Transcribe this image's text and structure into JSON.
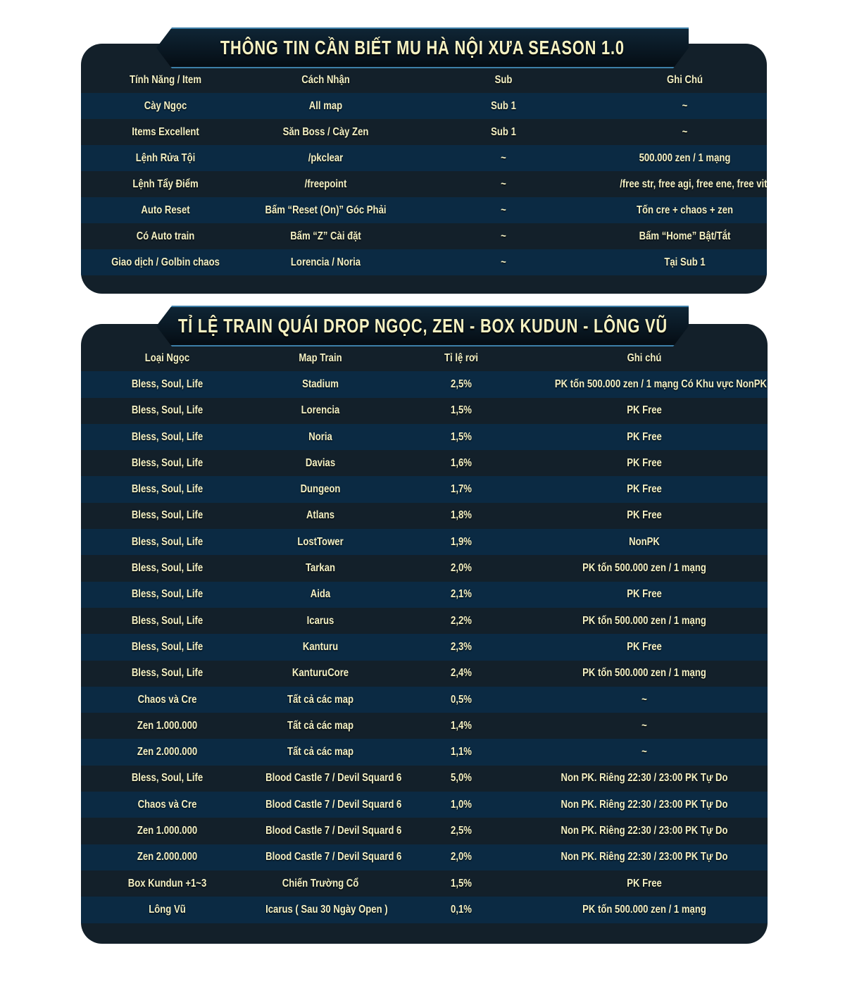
{
  "section1": {
    "title": "THÔNG TIN CẦN BIẾT MU HÀ NỘI XƯA SEASON 1.0",
    "headers": [
      "Tính Năng / Item",
      "Cách Nhận",
      "Sub",
      "Ghi Chú"
    ],
    "rows": [
      [
        "Cày Ngọc",
        "All map",
        "Sub 1",
        "~"
      ],
      [
        "Items Excellent",
        "Săn Boss / Cày Zen",
        "Sub 1",
        "~"
      ],
      [
        "Lệnh Rửa Tội",
        "/pkclear",
        "~",
        "500.000 zen / 1 mạng"
      ],
      [
        "Lệnh Tẩy Điểm",
        "/freepoint",
        "~",
        "/free str, free agi, free ene, free vit"
      ],
      [
        "Auto Reset",
        "Bấm “Reset (On)” Góc Phải",
        "~",
        "Tốn cre + chaos + zen"
      ],
      [
        "Có Auto train",
        "Bấm “Z” Cài đặt",
        "~",
        "Bấm “Home” Bật/Tắt"
      ],
      [
        "Giao dịch / Golbin chaos",
        "Lorencia / Noria",
        "~",
        "Tại Sub 1"
      ]
    ]
  },
  "section2": {
    "title": "TỈ LỆ TRAIN QUÁI DROP NGỌC, ZEN - BOX KUDUN - LÔNG VŨ",
    "headers": [
      "Loại Ngọc",
      "Map Train",
      "Tỉ lệ rơi",
      "Ghi chú"
    ],
    "rows": [
      [
        "Bless, Soul, Life",
        "Stadium",
        "2,5%",
        "PK tốn 500.000 zen / 1 mạng Có Khu vực NonPK"
      ],
      [
        "Bless, Soul, Life",
        "Lorencia",
        "1,5%",
        "PK Free"
      ],
      [
        "Bless, Soul, Life",
        "Noria",
        "1,5%",
        "PK Free"
      ],
      [
        "Bless, Soul, Life",
        "Davias",
        "1,6%",
        "PK Free"
      ],
      [
        "Bless, Soul, Life",
        "Dungeon",
        "1,7%",
        "PK Free"
      ],
      [
        "Bless, Soul, Life",
        "Atlans",
        "1,8%",
        "PK Free"
      ],
      [
        "Bless, Soul, Life",
        "LostTower",
        "1,9%",
        "NonPK"
      ],
      [
        "Bless, Soul, Life",
        "Tarkan",
        "2,0%",
        "PK tốn 500.000 zen / 1 mạng"
      ],
      [
        "Bless, Soul, Life",
        "Aida",
        "2,1%",
        "PK Free"
      ],
      [
        "Bless, Soul, Life",
        "Icarus",
        "2,2%",
        "PK tốn 500.000 zen / 1 mạng"
      ],
      [
        "Bless, Soul, Life",
        "Kanturu",
        "2,3%",
        "PK Free"
      ],
      [
        "Bless, Soul, Life",
        "KanturuCore",
        "2,4%",
        "PK tốn 500.000 zen / 1 mạng"
      ],
      [
        "Chaos và Cre",
        "Tất cả các map",
        "0,5%",
        "~"
      ],
      [
        "Zen 1.000.000",
        "Tất cả các map",
        "1,4%",
        "~"
      ],
      [
        "Zen 2.000.000",
        "Tất cả các map",
        "1,1%",
        "~"
      ],
      [
        "Bless, Soul, Life",
        "Blood Castle 7 / Devil Squard 6",
        "5,0%",
        "Non PK. Riêng 22:30 / 23:00 PK Tự Do"
      ],
      [
        "Chaos và Cre",
        "Blood Castle 7 / Devil Squard 6",
        "1,0%",
        "Non PK. Riêng 22:30 / 23:00 PK Tự Do"
      ],
      [
        "Zen 1.000.000",
        "Blood Castle 7 / Devil Squard 6",
        "2,5%",
        "Non PK. Riêng 22:30 / 23:00 PK Tự Do"
      ],
      [
        "Zen 2.000.000",
        "Blood Castle 7 / Devil Squard 6",
        "2,0%",
        "Non PK. Riêng 22:30 / 23:00 PK Tự Do"
      ],
      [
        "Box Kundun +1~3",
        "Chiến Trường Cổ",
        "1,5%",
        "PK Free"
      ],
      [
        "Lông Vũ",
        "Icarus ( Sau 30 Ngày Open )",
        "0,1%",
        "PK tốn 500.000 zen / 1 mạng"
      ]
    ]
  }
}
